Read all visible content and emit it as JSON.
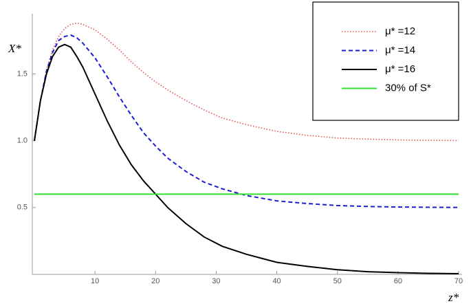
{
  "chart_data": {
    "type": "line",
    "xlabel": "z*",
    "ylabel": "X*",
    "x": [
      0,
      1,
      2,
      3,
      4,
      5,
      6,
      7,
      8,
      10,
      12,
      14,
      16,
      18,
      20,
      22,
      25,
      28,
      31,
      35,
      40,
      45,
      50,
      55,
      60,
      65,
      70
    ],
    "series": [
      {
        "name": "μ* =12",
        "color": "#e05050",
        "dash": "dotted",
        "values": [
          1.0,
          1.3,
          1.53,
          1.68,
          1.78,
          1.84,
          1.87,
          1.88,
          1.87,
          1.83,
          1.76,
          1.68,
          1.59,
          1.51,
          1.44,
          1.38,
          1.3,
          1.23,
          1.17,
          1.12,
          1.07,
          1.04,
          1.02,
          1.012,
          1.006,
          1.003,
          1.001
        ]
      },
      {
        "name": "μ* =14",
        "color": "#1a1adb",
        "dash": "dashed",
        "values": [
          1.0,
          1.3,
          1.52,
          1.66,
          1.75,
          1.78,
          1.79,
          1.77,
          1.73,
          1.62,
          1.48,
          1.33,
          1.19,
          1.06,
          0.96,
          0.87,
          0.77,
          0.69,
          0.64,
          0.59,
          0.55,
          0.53,
          0.515,
          0.508,
          0.504,
          0.502,
          0.501
        ]
      },
      {
        "name": "μ* =16",
        "color": "#000000",
        "dash": "solid",
        "values": [
          1.0,
          1.3,
          1.5,
          1.63,
          1.7,
          1.72,
          1.7,
          1.63,
          1.55,
          1.35,
          1.15,
          0.97,
          0.82,
          0.7,
          0.6,
          0.5,
          0.38,
          0.28,
          0.21,
          0.15,
          0.09,
          0.06,
          0.035,
          0.02,
          0.013,
          0.008,
          0.005
        ]
      },
      {
        "name": "30% of S*",
        "color": "#33dd33",
        "dash": "solid",
        "values": [
          0.6,
          0.6,
          0.6,
          0.6,
          0.6,
          0.6,
          0.6,
          0.6,
          0.6,
          0.6,
          0.6,
          0.6,
          0.6,
          0.6,
          0.6,
          0.6,
          0.6,
          0.6,
          0.6,
          0.6,
          0.6,
          0.6,
          0.6,
          0.6,
          0.6,
          0.6,
          0.6
        ]
      }
    ],
    "xlim": [
      0,
      70
    ],
    "xticks": [
      10,
      20,
      30,
      40,
      50,
      60,
      70
    ],
    "ylim": [
      0,
      1.95
    ],
    "yticks": [
      0.5,
      {
        "value": 1,
        "label": "1.0"
      },
      1.5
    ],
    "grid": false,
    "legend": "upper right"
  }
}
